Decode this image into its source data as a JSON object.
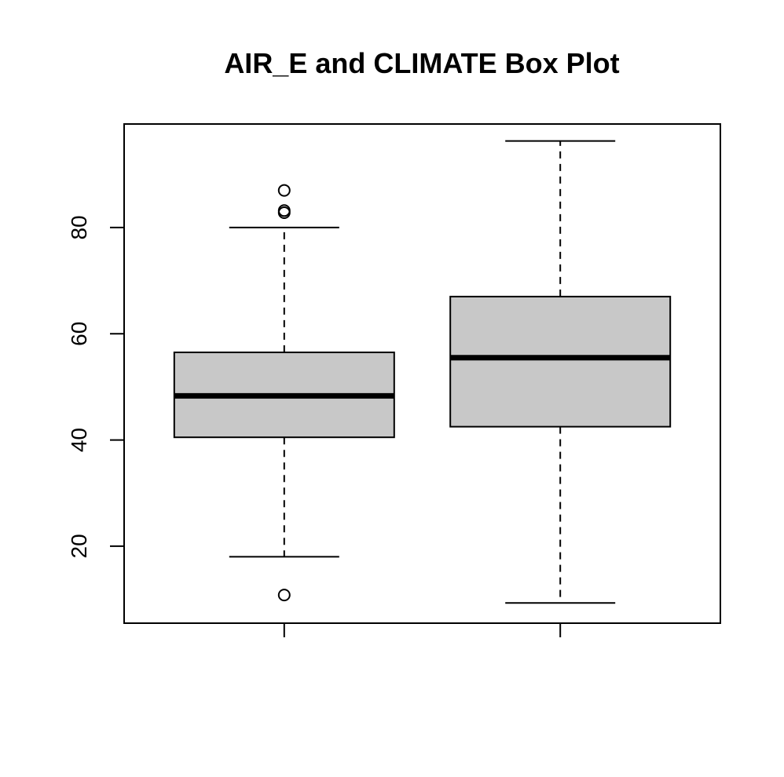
{
  "chart_data": {
    "type": "box",
    "title": "AIR_E and CLIMATE Box Plot",
    "xlabel": "",
    "ylabel": "",
    "ylim": [
      5.5,
      99.5
    ],
    "y_ticks": [
      20,
      40,
      60,
      80
    ],
    "grid": false,
    "legend": "none",
    "box_fill": "#c8c8c8",
    "stroke_color": "#000000",
    "series": [
      {
        "whisker_low": 18,
        "q1": 40.5,
        "median": 48.3,
        "q3": 56.5,
        "whisker_high": 80,
        "outliers": [
          87,
          83.2,
          82.8,
          10.8
        ]
      },
      {
        "whisker_low": 9.3,
        "q1": 42.5,
        "median": 55.5,
        "q3": 67,
        "whisker_high": 96.3,
        "outliers": []
      }
    ]
  }
}
